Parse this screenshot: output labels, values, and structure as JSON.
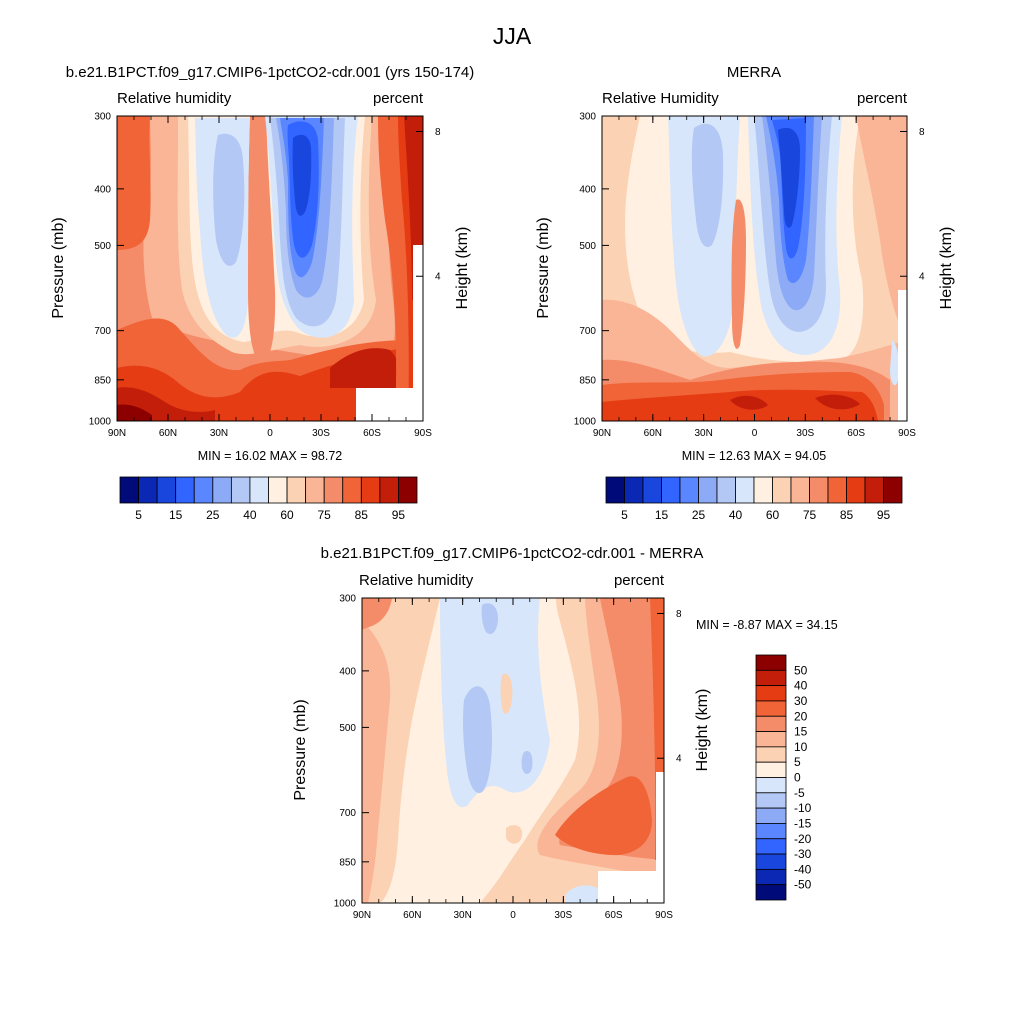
{
  "figure": {
    "title": "JJA"
  },
  "chart_data": [
    {
      "type": "heatmap",
      "panel": "model",
      "title": "b.e21.B1PCT.f09_g17.CMIP6-1pctCO2-cdr.001 (yrs 150-174)",
      "left_label": "Relative humidity",
      "right_label": "percent",
      "ylabel": "Pressure (mb)",
      "ylabel_right": "Height (km)",
      "x_ticks": [
        "90N",
        "60N",
        "30N",
        "0",
        "30S",
        "60S",
        "90S"
      ],
      "y_ticks": [
        300,
        400,
        500,
        700,
        850,
        1000
      ],
      "y_ticks_right": [
        8,
        4
      ],
      "ylim": [
        1000,
        300
      ],
      "xlim": [
        90,
        -90
      ],
      "y_scale": "log",
      "min": 16.02,
      "max": 98.72,
      "stats_text": "MIN = 16.02 MAX = 98.72",
      "colorbar": {
        "orientation": "horizontal",
        "labels": [
          "5",
          "15",
          "25",
          "40",
          "60",
          "75",
          "85",
          "95"
        ],
        "colors": [
          "#000a78",
          "#0a28b4",
          "#1946dc",
          "#3264ff",
          "#5a87ff",
          "#8caaf5",
          "#b4c8f5",
          "#d7e6fa",
          "#fff0e1",
          "#fcd2b4",
          "#fab496",
          "#f58c69",
          "#f06437",
          "#e63c14",
          "#c31e0a",
          "#8c0000"
        ]
      }
    },
    {
      "type": "heatmap",
      "panel": "obs",
      "title": "MERRA",
      "left_label": "Relative Humidity",
      "right_label": "percent",
      "ylabel": "Pressure (mb)",
      "ylabel_right": "Height (km)",
      "x_ticks": [
        "90N",
        "60N",
        "30N",
        "0",
        "30S",
        "60S",
        "90S"
      ],
      "y_ticks": [
        300,
        400,
        500,
        700,
        850,
        1000
      ],
      "y_ticks_right": [
        8,
        4
      ],
      "ylim": [
        1000,
        300
      ],
      "xlim": [
        90,
        -90
      ],
      "y_scale": "log",
      "min": 12.63,
      "max": 94.05,
      "stats_text": "MIN = 12.63 MAX = 94.05",
      "colorbar": {
        "orientation": "horizontal",
        "labels": [
          "5",
          "15",
          "25",
          "40",
          "60",
          "75",
          "85",
          "95"
        ],
        "colors": [
          "#000a78",
          "#0a28b4",
          "#1946dc",
          "#3264ff",
          "#5a87ff",
          "#8caaf5",
          "#b4c8f5",
          "#d7e6fa",
          "#fff0e1",
          "#fcd2b4",
          "#fab496",
          "#f58c69",
          "#f06437",
          "#e63c14",
          "#c31e0a",
          "#8c0000"
        ]
      }
    },
    {
      "type": "heatmap",
      "panel": "difference",
      "title": "b.e21.B1PCT.f09_g17.CMIP6-1pctCO2-cdr.001 - MERRA",
      "left_label": "Relative humidity",
      "right_label": "percent",
      "ylabel": "Pressure (mb)",
      "ylabel_right": "Height (km)",
      "x_ticks": [
        "90N",
        "60N",
        "30N",
        "0",
        "30S",
        "60S",
        "90S"
      ],
      "y_ticks": [
        300,
        400,
        500,
        700,
        850,
        1000
      ],
      "y_ticks_right": [
        8,
        4
      ],
      "ylim": [
        1000,
        300
      ],
      "xlim": [
        90,
        -90
      ],
      "y_scale": "log",
      "min": -8.87,
      "max": 34.15,
      "stats_text": "MIN = -8.87 MAX = 34.15",
      "colorbar": {
        "orientation": "vertical",
        "labels": [
          "50",
          "40",
          "30",
          "20",
          "15",
          "10",
          "5",
          "0",
          "-5",
          "-10",
          "-15",
          "-20",
          "-30",
          "-40",
          "-50"
        ],
        "colors": [
          "#8c0000",
          "#c31e0a",
          "#e63c14",
          "#f06437",
          "#f58c69",
          "#fab496",
          "#fcd2b4",
          "#fff0e1",
          "#d7e6fa",
          "#b4c8f5",
          "#8caaf5",
          "#5a87ff",
          "#3264ff",
          "#1946dc",
          "#0a28b4",
          "#000a78"
        ]
      }
    }
  ]
}
